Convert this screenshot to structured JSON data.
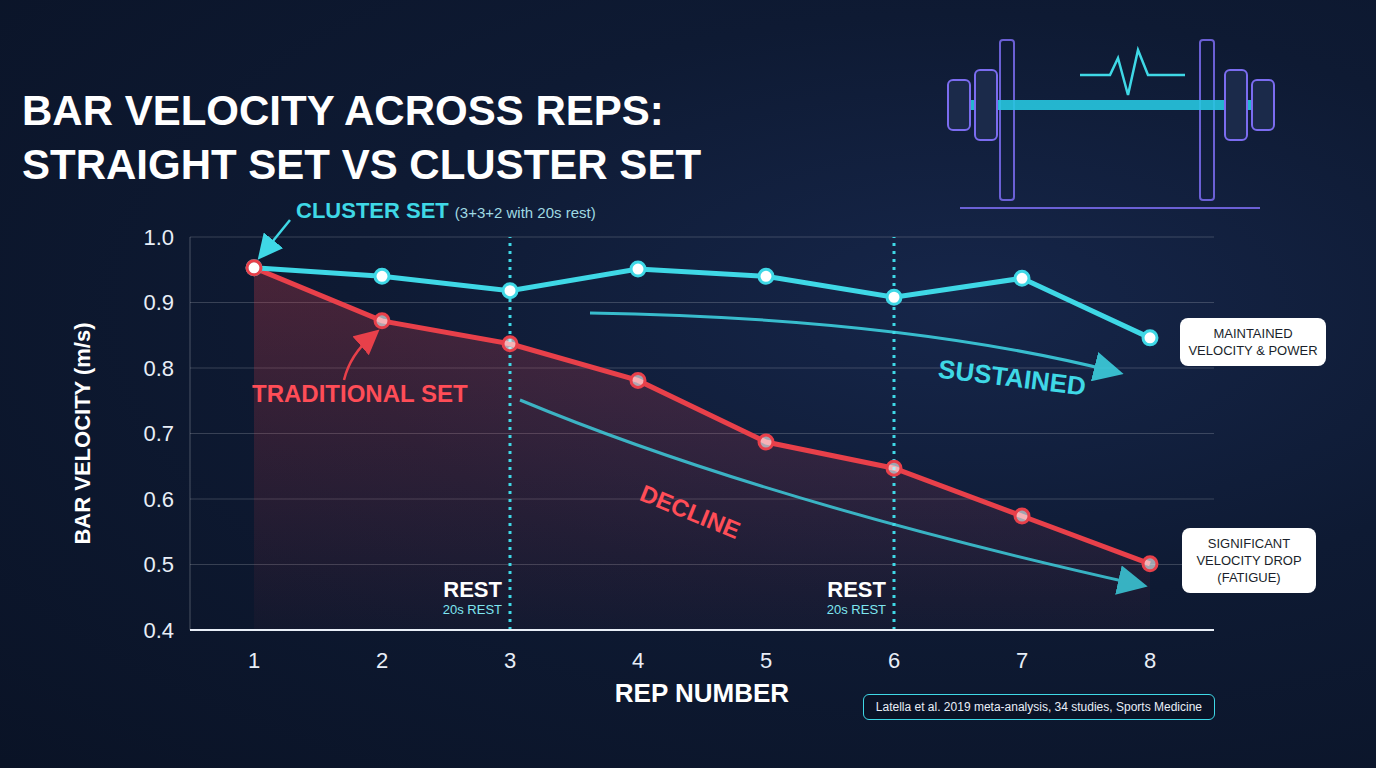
{
  "chart_data": {
    "type": "line",
    "title": "BAR VELOCITY ACROSS REPS: STRAIGHT SET VS CLUSTER SET",
    "x_label": "REP NUMBER",
    "y_label": "BAR VELOCITY (m/s)",
    "x": [
      1,
      2,
      3,
      4,
      5,
      6,
      7,
      8
    ],
    "xlim": [
      0.5,
      8.5
    ],
    "xticks": [
      1,
      2,
      3,
      4,
      5,
      6,
      7,
      8
    ],
    "ylim": [
      0.4,
      1.0
    ],
    "yticks": [
      0.4,
      0.5,
      0.6,
      0.7,
      0.8,
      0.9,
      {
        "value": 1.0,
        "label": "1.0"
      }
    ],
    "grid": true,
    "series": [
      {
        "name": "CLUSTER SET",
        "color": "#3fd8e6",
        "type": "line",
        "marker": "circle",
        "line_style": "solid",
        "values": [
          0.953,
          0.94,
          0.918,
          0.951,
          0.94,
          0.908,
          0.937,
          0.846
        ]
      },
      {
        "name": "TRADITIONAL SET",
        "color": "#e8404a",
        "type": "area",
        "marker": "circle",
        "line_style": "solid",
        "values": [
          0.953,
          0.872,
          0.837,
          0.781,
          0.687,
          0.647,
          0.574,
          0.501
        ]
      }
    ],
    "rest_markers": [
      {
        "x": 3,
        "label": "REST",
        "note": "20s REST"
      },
      {
        "x": 6,
        "label": "REST",
        "note": "20s REST"
      }
    ],
    "annotations": [
      "(3+3+2 with 20s rest)",
      "SUSTAINED",
      "DECLINE",
      "MAINTAINED VELOCITY & POWER",
      "SIGNIFICANT VELOCITY DROP (FATIGUE)"
    ],
    "source": "Latella et al. 2019 meta-analysis, 34 studies, Sports Medicine"
  }
}
